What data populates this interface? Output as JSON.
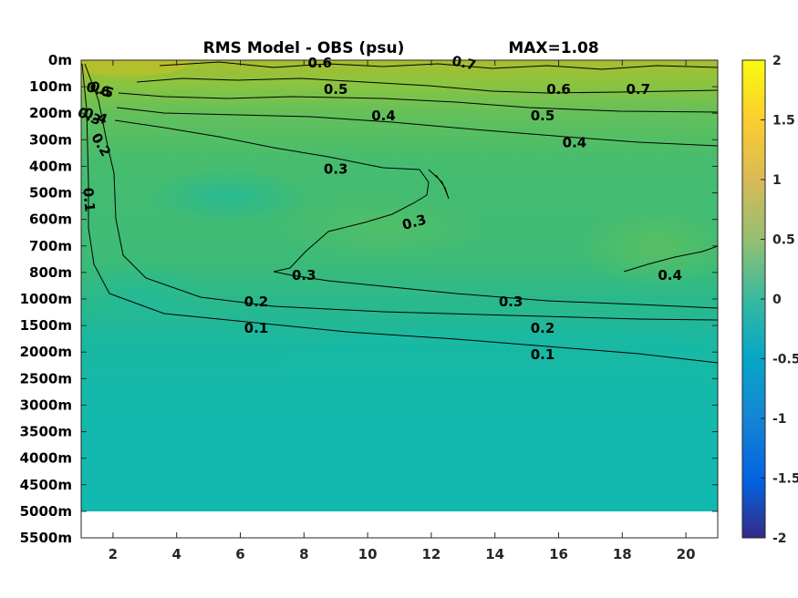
{
  "chart_data": {
    "type": "heatmap",
    "title": "RMS Model - OBS (psu)",
    "max_label": "MAX=1.08",
    "x_ticks": [
      2,
      4,
      6,
      8,
      10,
      12,
      14,
      16,
      18,
      20
    ],
    "xlim": [
      1,
      21
    ],
    "y_ticks": [
      "0m",
      "100m",
      "200m",
      "300m",
      "400m",
      "500m",
      "600m",
      "700m",
      "800m",
      "1000m",
      "1500m",
      "2000m",
      "2500m",
      "3000m",
      "3500m",
      "4000m",
      "4500m",
      "5000m",
      "5500m"
    ],
    "colorbar": {
      "ticks": [
        "2",
        "1.5",
        "1",
        "0.5",
        "0",
        "-0.5",
        "-1",
        "-1.5",
        "-2"
      ],
      "range": [
        -2,
        2
      ],
      "colormap": "parula"
    },
    "contour_labels": [
      {
        "text": "0.6",
        "x": 1.5,
        "depth": "100m"
      },
      {
        "text": "0.5",
        "x": 1.6,
        "depth": "100m"
      },
      {
        "text": "0.4",
        "x": 1.4,
        "depth": "200m"
      },
      {
        "text": "0.3",
        "x": 1.2,
        "depth": "200m"
      },
      {
        "text": "0.2",
        "x": 1.5,
        "depth": "300m"
      },
      {
        "text": "0.1",
        "x": 1.1,
        "depth": "500m"
      },
      {
        "text": "0.6",
        "x": 8.5,
        "depth": "0m"
      },
      {
        "text": "0.7",
        "x": 13.0,
        "depth": "0m"
      },
      {
        "text": "0.7",
        "x": 18.5,
        "depth": "100m"
      },
      {
        "text": "0.5",
        "x": 9.0,
        "depth": "100m"
      },
      {
        "text": "0.6",
        "x": 16.0,
        "depth": "100m"
      },
      {
        "text": "0.4",
        "x": 10.5,
        "depth": "200m"
      },
      {
        "text": "0.5",
        "x": 15.5,
        "depth": "200m"
      },
      {
        "text": "0.4",
        "x": 16.5,
        "depth": "300m"
      },
      {
        "text": "0.3",
        "x": 9.0,
        "depth": "400m"
      },
      {
        "text": "0.3",
        "x": 11.5,
        "depth": "600m"
      },
      {
        "text": "0.3",
        "x": 8.0,
        "depth": "800m"
      },
      {
        "text": "0.4",
        "x": 19.5,
        "depth": "800m"
      },
      {
        "text": "0.2",
        "x": 6.5,
        "depth": "1000m"
      },
      {
        "text": "0.3",
        "x": 14.5,
        "depth": "1000m"
      },
      {
        "text": "0.1",
        "x": 6.5,
        "depth": "1500m"
      },
      {
        "text": "0.2",
        "x": 15.5,
        "depth": "1500m"
      },
      {
        "text": "0.1",
        "x": 15.5,
        "depth": "2000m"
      }
    ],
    "no_data_below": "5000m"
  }
}
